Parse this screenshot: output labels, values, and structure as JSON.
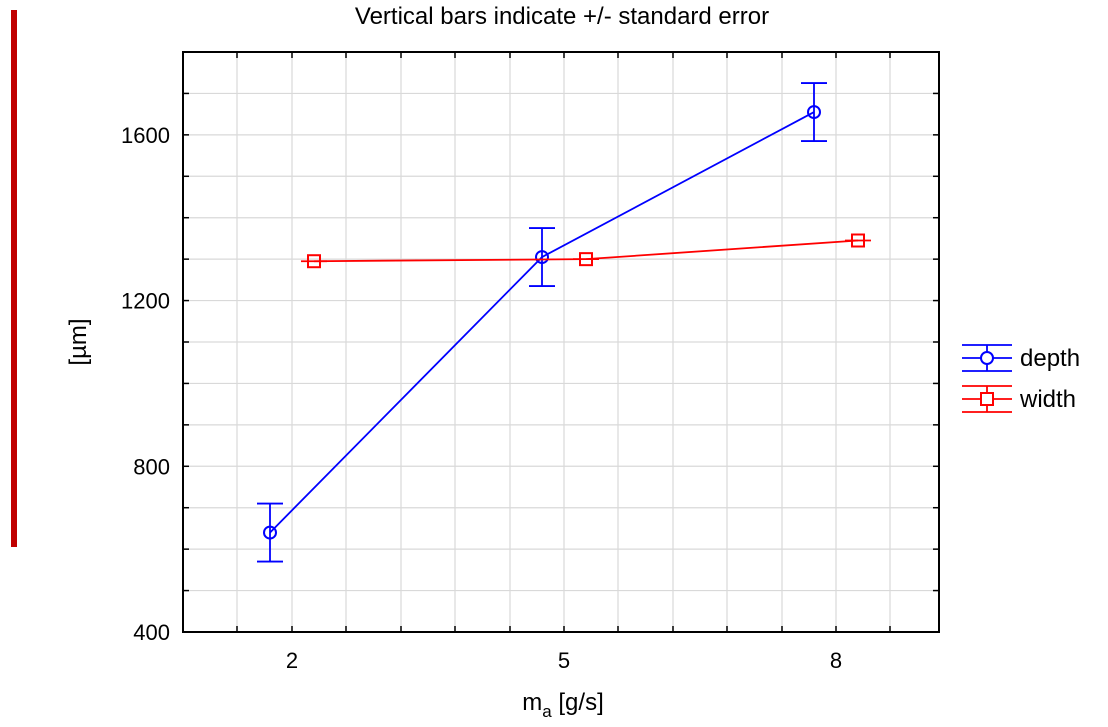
{
  "chart_data": {
    "type": "line",
    "title": "Vertical bars indicate +/- standard error",
    "xlabel_main": "m",
    "xlabel_sub": "a",
    "xlabel_unit": " [g/s]",
    "ylabel": "[µm]",
    "categories": [
      "2",
      "5",
      "8"
    ],
    "ylim": [
      400,
      1800
    ],
    "yticks": [
      400,
      800,
      1200,
      1600
    ],
    "grid": true,
    "legend_position": "right",
    "series": [
      {
        "name": "depth",
        "color": "#0000ff",
        "marker": "circle",
        "values": [
          640,
          1305,
          1655
        ],
        "errors": [
          70,
          70,
          70
        ]
      },
      {
        "name": "width",
        "color": "#ff0000",
        "marker": "square",
        "values": [
          1295,
          1300,
          1345
        ],
        "errors": [
          0,
          0,
          0
        ]
      }
    ]
  },
  "accent_bar_color": "#c00000"
}
